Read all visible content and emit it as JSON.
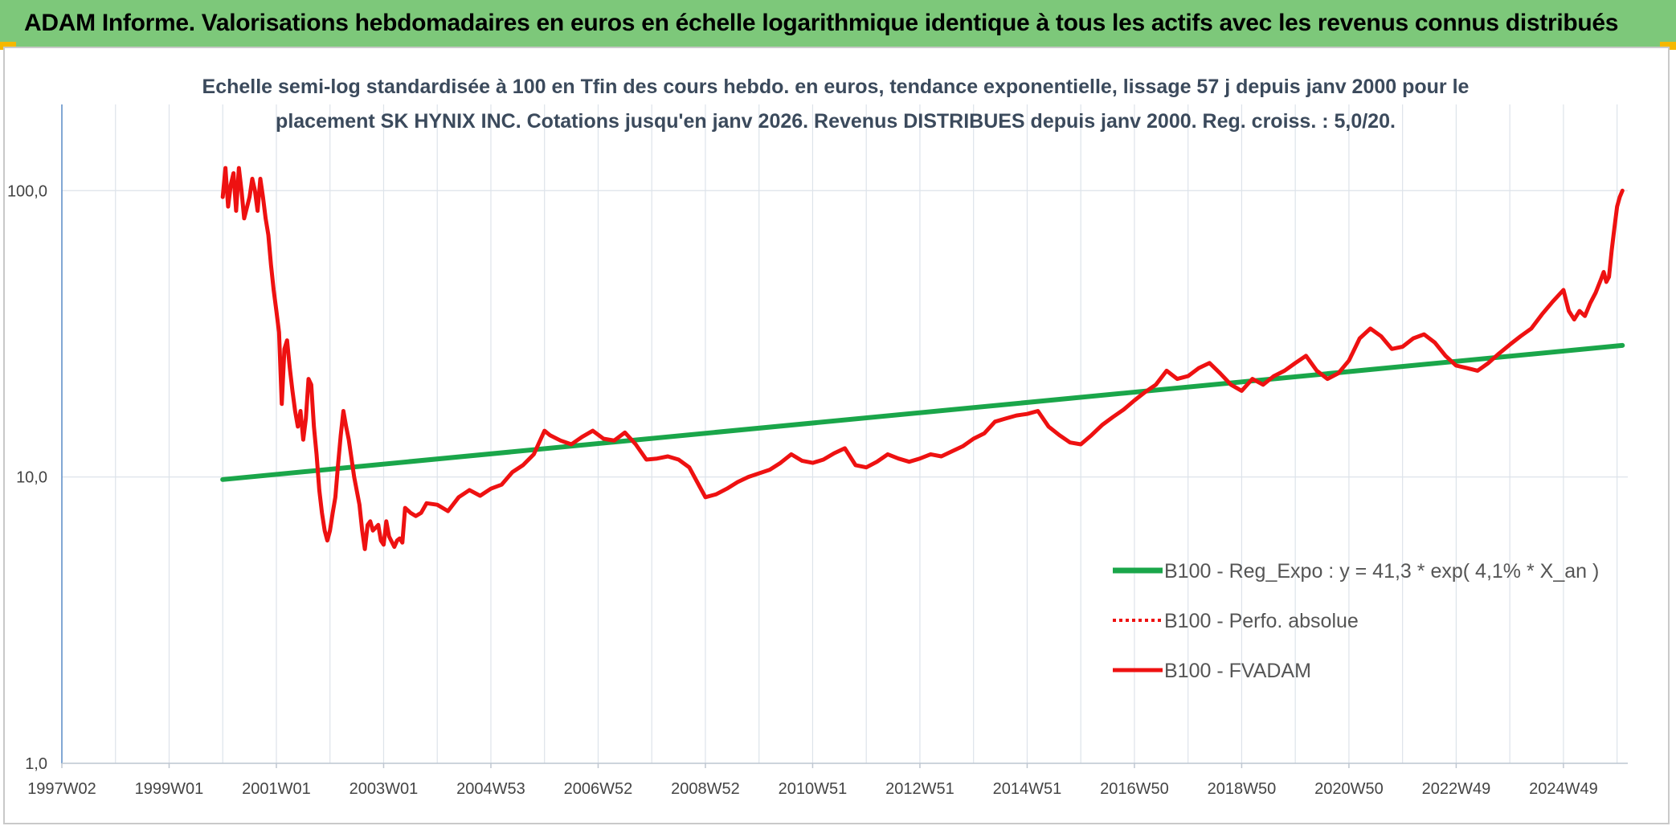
{
  "banner": {
    "title": "ADAM Informe. Valorisations hebdomadaires en euros en échelle logarithmique identique à tous les actifs avec les revenus connus distribués"
  },
  "colors": {
    "banner_bg": "#7dc87a",
    "accent_corner": "#f5b800",
    "series_trend": "#1aa64a",
    "series_fvadam": "#ee1111",
    "series_perfo": "#ee1111",
    "gridline": "#dde3ea",
    "axis_line": "#5b8cc8"
  },
  "chart_data": {
    "type": "line",
    "title_lines": [
      "Echelle semi-log standardisée à 100 en Tfin des cours hebdo. en euros, tendance exponentielle, lissage 57 j depuis janv 2000 pour le",
      "placement SK HYNIX INC. Cotations jusqu'en janv 2026. Revenus DISTRIBUES depuis janv 2000. Reg. croiss. : 5,0/20."
    ],
    "y_scale": "log",
    "ylim": [
      1,
      200
    ],
    "y_ticks": [
      {
        "value": 1,
        "label": "1,0"
      },
      {
        "value": 10,
        "label": "10,0"
      },
      {
        "value": 100,
        "label": "100,0"
      }
    ],
    "xlim": [
      1997.0,
      2026.2
    ],
    "x_ticks": [
      {
        "value": 1997.0,
        "label": "1997W02"
      },
      {
        "value": 1999.0,
        "label": "1999W01"
      },
      {
        "value": 2001.0,
        "label": "2001W01"
      },
      {
        "value": 2003.0,
        "label": "2003W01"
      },
      {
        "value": 2005.0,
        "label": "2004W53"
      },
      {
        "value": 2007.0,
        "label": "2006W52"
      },
      {
        "value": 2009.0,
        "label": "2008W52"
      },
      {
        "value": 2011.0,
        "label": "2010W51"
      },
      {
        "value": 2013.0,
        "label": "2012W51"
      },
      {
        "value": 2015.0,
        "label": "2014W51"
      },
      {
        "value": 2017.0,
        "label": "2016W50"
      },
      {
        "value": 2019.0,
        "label": "2018W50"
      },
      {
        "value": 2021.0,
        "label": "2020W50"
      },
      {
        "value": 2023.0,
        "label": "2022W49"
      },
      {
        "value": 2025.0,
        "label": "2024W49"
      }
    ],
    "grid": true,
    "legend_position": "lower-right",
    "series": [
      {
        "name": "B100 - Reg_Expo : y = 41,3 * exp( 4,1% *  X_an )",
        "style": "solid-thick",
        "color": "#1aa64a",
        "points": [
          [
            2000.0,
            9.8
          ],
          [
            2026.1,
            28.8
          ]
        ]
      },
      {
        "name": "B100 - Perfo. absolue",
        "style": "dotted",
        "color": "#ee1111",
        "points": []
      },
      {
        "name": "B100 - FVADAM",
        "style": "solid",
        "color": "#ee1111",
        "points": [
          [
            2000.0,
            95
          ],
          [
            2000.05,
            120
          ],
          [
            2000.1,
            88
          ],
          [
            2000.15,
            105
          ],
          [
            2000.2,
            115
          ],
          [
            2000.25,
            85
          ],
          [
            2000.3,
            120
          ],
          [
            2000.35,
            100
          ],
          [
            2000.4,
            80
          ],
          [
            2000.5,
            95
          ],
          [
            2000.55,
            110
          ],
          [
            2000.6,
            100
          ],
          [
            2000.65,
            85
          ],
          [
            2000.7,
            110
          ],
          [
            2000.75,
            95
          ],
          [
            2000.8,
            80
          ],
          [
            2000.85,
            70
          ],
          [
            2000.9,
            55
          ],
          [
            2000.95,
            45
          ],
          [
            2001.0,
            38
          ],
          [
            2001.05,
            32
          ],
          [
            2001.1,
            18
          ],
          [
            2001.15,
            28
          ],
          [
            2001.2,
            30
          ],
          [
            2001.25,
            24
          ],
          [
            2001.3,
            20
          ],
          [
            2001.35,
            17
          ],
          [
            2001.4,
            15
          ],
          [
            2001.45,
            17
          ],
          [
            2001.5,
            13.5
          ],
          [
            2001.55,
            16
          ],
          [
            2001.6,
            22
          ],
          [
            2001.65,
            21
          ],
          [
            2001.7,
            15
          ],
          [
            2001.75,
            12
          ],
          [
            2001.8,
            9
          ],
          [
            2001.85,
            7.5
          ],
          [
            2001.9,
            6.5
          ],
          [
            2001.95,
            6
          ],
          [
            2002.0,
            6.5
          ],
          [
            2002.05,
            7.5
          ],
          [
            2002.1,
            8.5
          ],
          [
            2002.15,
            11
          ],
          [
            2002.2,
            14
          ],
          [
            2002.25,
            17
          ],
          [
            2002.3,
            15
          ],
          [
            2002.35,
            13.5
          ],
          [
            2002.45,
            10
          ],
          [
            2002.55,
            8
          ],
          [
            2002.6,
            6.5
          ],
          [
            2002.65,
            5.6
          ],
          [
            2002.7,
            6.8
          ],
          [
            2002.75,
            7
          ],
          [
            2002.8,
            6.5
          ],
          [
            2002.9,
            6.8
          ],
          [
            2002.95,
            6
          ],
          [
            2003.0,
            5.8
          ],
          [
            2003.05,
            7
          ],
          [
            2003.1,
            6.2
          ],
          [
            2003.2,
            5.7
          ],
          [
            2003.25,
            6
          ],
          [
            2003.3,
            6.1
          ],
          [
            2003.35,
            5.9
          ],
          [
            2003.4,
            7.8
          ],
          [
            2003.5,
            7.5
          ],
          [
            2003.6,
            7.3
          ],
          [
            2003.7,
            7.5
          ],
          [
            2003.8,
            8.1
          ],
          [
            2004.0,
            8.0
          ],
          [
            2004.2,
            7.6
          ],
          [
            2004.4,
            8.5
          ],
          [
            2004.6,
            9.0
          ],
          [
            2004.8,
            8.6
          ],
          [
            2005.0,
            9.1
          ],
          [
            2005.2,
            9.4
          ],
          [
            2005.4,
            10.4
          ],
          [
            2005.6,
            11.0
          ],
          [
            2005.8,
            12.0
          ],
          [
            2006.0,
            14.5
          ],
          [
            2006.1,
            14.0
          ],
          [
            2006.3,
            13.4
          ],
          [
            2006.5,
            13.0
          ],
          [
            2006.7,
            13.8
          ],
          [
            2006.9,
            14.5
          ],
          [
            2007.1,
            13.6
          ],
          [
            2007.3,
            13.4
          ],
          [
            2007.5,
            14.3
          ],
          [
            2007.7,
            13.0
          ],
          [
            2007.9,
            11.5
          ],
          [
            2008.1,
            11.6
          ],
          [
            2008.3,
            11.8
          ],
          [
            2008.5,
            11.5
          ],
          [
            2008.7,
            10.8
          ],
          [
            2008.9,
            9.2
          ],
          [
            2009.0,
            8.5
          ],
          [
            2009.2,
            8.7
          ],
          [
            2009.4,
            9.1
          ],
          [
            2009.6,
            9.6
          ],
          [
            2009.8,
            10.0
          ],
          [
            2010.0,
            10.3
          ],
          [
            2010.2,
            10.6
          ],
          [
            2010.4,
            11.2
          ],
          [
            2010.6,
            12.0
          ],
          [
            2010.8,
            11.4
          ],
          [
            2011.0,
            11.2
          ],
          [
            2011.2,
            11.5
          ],
          [
            2011.4,
            12.1
          ],
          [
            2011.6,
            12.6
          ],
          [
            2011.8,
            11.0
          ],
          [
            2012.0,
            10.8
          ],
          [
            2012.2,
            11.3
          ],
          [
            2012.4,
            12.0
          ],
          [
            2012.6,
            11.6
          ],
          [
            2012.8,
            11.3
          ],
          [
            2013.0,
            11.6
          ],
          [
            2013.2,
            12.0
          ],
          [
            2013.4,
            11.8
          ],
          [
            2013.6,
            12.3
          ],
          [
            2013.8,
            12.8
          ],
          [
            2014.0,
            13.6
          ],
          [
            2014.2,
            14.2
          ],
          [
            2014.4,
            15.6
          ],
          [
            2014.6,
            16.0
          ],
          [
            2014.8,
            16.4
          ],
          [
            2015.0,
            16.6
          ],
          [
            2015.2,
            17.0
          ],
          [
            2015.4,
            15.0
          ],
          [
            2015.6,
            14.0
          ],
          [
            2015.8,
            13.2
          ],
          [
            2016.0,
            13.0
          ],
          [
            2016.2,
            14.0
          ],
          [
            2016.4,
            15.2
          ],
          [
            2016.6,
            16.2
          ],
          [
            2016.8,
            17.2
          ],
          [
            2017.0,
            18.5
          ],
          [
            2017.2,
            19.8
          ],
          [
            2017.4,
            21.0
          ],
          [
            2017.6,
            23.5
          ],
          [
            2017.8,
            22.0
          ],
          [
            2018.0,
            22.5
          ],
          [
            2018.2,
            24.0
          ],
          [
            2018.4,
            25.0
          ],
          [
            2018.6,
            23.0
          ],
          [
            2018.8,
            21.0
          ],
          [
            2019.0,
            20.0
          ],
          [
            2019.2,
            22.0
          ],
          [
            2019.4,
            21.0
          ],
          [
            2019.6,
            22.5
          ],
          [
            2019.8,
            23.5
          ],
          [
            2020.0,
            25.0
          ],
          [
            2020.2,
            26.5
          ],
          [
            2020.4,
            23.5
          ],
          [
            2020.6,
            22.0
          ],
          [
            2020.8,
            23.0
          ],
          [
            2021.0,
            25.5
          ],
          [
            2021.2,
            30.5
          ],
          [
            2021.4,
            33.0
          ],
          [
            2021.6,
            31.0
          ],
          [
            2021.8,
            28.0
          ],
          [
            2022.0,
            28.5
          ],
          [
            2022.2,
            30.5
          ],
          [
            2022.4,
            31.5
          ],
          [
            2022.6,
            29.5
          ],
          [
            2022.8,
            26.5
          ],
          [
            2023.0,
            24.5
          ],
          [
            2023.2,
            24.0
          ],
          [
            2023.4,
            23.5
          ],
          [
            2023.6,
            25.0
          ],
          [
            2023.8,
            27.0
          ],
          [
            2024.0,
            29.0
          ],
          [
            2024.2,
            31.0
          ],
          [
            2024.4,
            33.0
          ],
          [
            2024.6,
            37.0
          ],
          [
            2024.8,
            41.0
          ],
          [
            2025.0,
            45.0
          ],
          [
            2025.1,
            38.0
          ],
          [
            2025.2,
            35.5
          ],
          [
            2025.3,
            38.0
          ],
          [
            2025.4,
            36.5
          ],
          [
            2025.5,
            40.5
          ],
          [
            2025.6,
            44.0
          ],
          [
            2025.7,
            49.0
          ],
          [
            2025.75,
            52.0
          ],
          [
            2025.8,
            48.0
          ],
          [
            2025.85,
            50.0
          ],
          [
            2025.9,
            62.0
          ],
          [
            2025.95,
            74.0
          ],
          [
            2026.0,
            88.0
          ],
          [
            2026.05,
            95.0
          ],
          [
            2026.1,
            100.0
          ]
        ]
      }
    ]
  }
}
